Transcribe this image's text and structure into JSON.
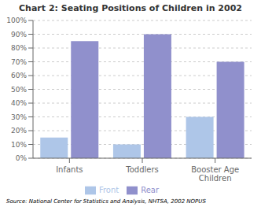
{
  "chart_data": {
    "type": "bar",
    "title": "Chart 2: Seating Positions of Children in 2002",
    "categories": [
      "Infants",
      "Toddlers",
      "Booster Age\nChildren"
    ],
    "series": [
      {
        "name": "Front",
        "color": "#aec6e8",
        "values": [
          0.15,
          0.1,
          0.3
        ]
      },
      {
        "name": "Rear",
        "color": "#9090cc",
        "values": [
          0.85,
          0.9,
          0.7
        ]
      }
    ],
    "ylim": [
      0,
      1.0
    ],
    "yticks": [
      {
        "value": 0.0,
        "label": "0%"
      },
      {
        "value": 0.1,
        "label": "10%"
      },
      {
        "value": 0.2,
        "label": "20%"
      },
      {
        "value": 0.3,
        "label": "30%"
      },
      {
        "value": 0.4,
        "label": "40%"
      },
      {
        "value": 0.5,
        "label": "50%"
      },
      {
        "value": 0.6,
        "label": "60%"
      },
      {
        "value": 0.7,
        "label": "70%"
      },
      {
        "value": 0.8,
        "label": "80%"
      },
      {
        "value": 0.9,
        "label": "90%"
      },
      {
        "value": 1.0,
        "label": "100%"
      }
    ],
    "grid": true,
    "legend": "bottom",
    "annotations": [
      "Source: National Center for Statistics and Analysis, NHTSA, 2002 NOPUS"
    ]
  }
}
